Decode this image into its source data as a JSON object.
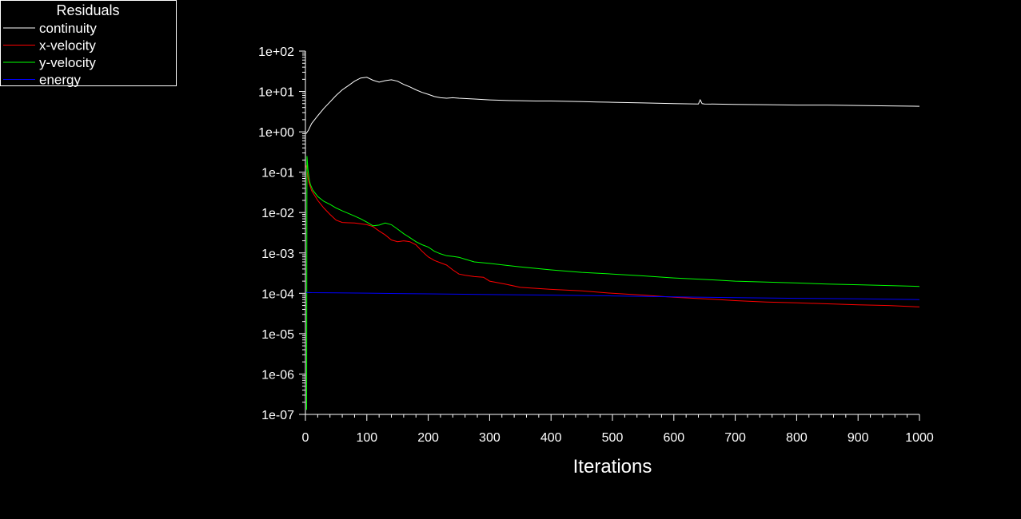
{
  "chart_data": {
    "type": "line",
    "title": "",
    "xlabel": "Iterations",
    "ylabel": "",
    "xlim": [
      0,
      1000
    ],
    "ylim": [
      1e-07,
      100
    ],
    "yscale": "log",
    "grid": false,
    "background": "#000000",
    "x_ticks": [
      0,
      100,
      200,
      300,
      400,
      500,
      600,
      700,
      800,
      900,
      1000
    ],
    "x_tick_labels": [
      "0",
      "100",
      "200",
      "300",
      "400",
      "500",
      "600",
      "700",
      "800",
      "900",
      "1000"
    ],
    "y_ticks": [
      1e-07,
      1e-06,
      1e-05,
      0.0001,
      0.001,
      0.01,
      0.1,
      1,
      10,
      100
    ],
    "y_tick_labels": [
      "1e-07",
      "1e-06",
      "1e-05",
      "1e-04",
      "1e-03",
      "1e-02",
      "1e-01",
      "1e+00",
      "1e+01",
      "1e+02"
    ],
    "legend": {
      "title": "Residuals",
      "placement": "top-left"
    },
    "series": [
      {
        "name": "continuity",
        "color": "#ffffff",
        "x": [
          1,
          5,
          10,
          20,
          30,
          40,
          50,
          60,
          70,
          80,
          90,
          100,
          110,
          120,
          130,
          140,
          150,
          160,
          170,
          180,
          190,
          200,
          210,
          220,
          230,
          240,
          250,
          275,
          300,
          325,
          350,
          375,
          400,
          425,
          450,
          475,
          500,
          550,
          600,
          640,
          643,
          646,
          650,
          700,
          750,
          800,
          850,
          900,
          950,
          1000
        ],
        "y": [
          0.9,
          1.1,
          1.6,
          2.5,
          3.8,
          5.5,
          8,
          11,
          14,
          18,
          21.5,
          22.5,
          19,
          17,
          18.5,
          19.5,
          18,
          15,
          13,
          11,
          9.5,
          8.5,
          7.5,
          7,
          6.8,
          7,
          6.8,
          6.5,
          6.2,
          6,
          5.9,
          5.8,
          5.8,
          5.7,
          5.6,
          5.5,
          5.4,
          5.2,
          5,
          4.9,
          6.2,
          5,
          4.9,
          4.8,
          4.7,
          4.6,
          4.6,
          4.5,
          4.4,
          4.3
        ]
      },
      {
        "name": "x-velocity",
        "color": "#ff0000",
        "x": [
          1,
          3,
          5,
          10,
          20,
          30,
          40,
          50,
          60,
          70,
          80,
          90,
          100,
          110,
          120,
          130,
          140,
          150,
          160,
          170,
          180,
          190,
          200,
          210,
          220,
          230,
          240,
          250,
          260,
          275,
          290,
          300,
          325,
          350,
          400,
          450,
          500,
          550,
          600,
          650,
          700,
          750,
          800,
          850,
          900,
          950,
          1000
        ],
        "y": [
          0.15,
          0.1,
          0.06,
          0.035,
          0.02,
          0.013,
          0.009,
          0.0065,
          0.0057,
          0.0056,
          0.0055,
          0.0053,
          0.005,
          0.0045,
          0.0035,
          0.0028,
          0.0021,
          0.0019,
          0.002,
          0.0019,
          0.0016,
          0.0011,
          0.0008,
          0.00065,
          0.00057,
          0.0005,
          0.00038,
          0.0003,
          0.00028,
          0.00026,
          0.00025,
          0.0002,
          0.00017,
          0.00014,
          0.000125,
          0.000115,
          0.0001,
          9e-05,
          8e-05,
          7.3e-05,
          6.6e-05,
          6.1e-05,
          5.8e-05,
          5.5e-05,
          5.2e-05,
          5e-05,
          4.6e-05
        ]
      },
      {
        "name": "y-velocity",
        "color": "#00ff00",
        "x": [
          2,
          2.5,
          3,
          4,
          6,
          8,
          12,
          20,
          30,
          40,
          50,
          60,
          70,
          80,
          90,
          100,
          110,
          120,
          130,
          140,
          150,
          160,
          170,
          180,
          190,
          200,
          210,
          220,
          230,
          240,
          250,
          260,
          275,
          300,
          350,
          400,
          450,
          500,
          550,
          600,
          650,
          700,
          750,
          800,
          850,
          900,
          950,
          1000
        ],
        "y": [
          1.3e-07,
          0.25,
          0.2,
          0.12,
          0.07,
          0.05,
          0.036,
          0.025,
          0.019,
          0.016,
          0.013,
          0.011,
          0.0095,
          0.0082,
          0.007,
          0.0058,
          0.0047,
          0.0049,
          0.0055,
          0.005,
          0.0039,
          0.003,
          0.0024,
          0.0019,
          0.0016,
          0.0014,
          0.0011,
          0.00095,
          0.00085,
          0.00082,
          0.00078,
          0.0007,
          0.0006,
          0.00055,
          0.00045,
          0.00038,
          0.00033,
          0.0003,
          0.00027,
          0.00024,
          0.00022,
          0.0002,
          0.00019,
          0.00018,
          0.00017,
          0.000163,
          0.000156,
          0.000148
        ]
      },
      {
        "name": "energy",
        "color": "#0000ff",
        "x": [
          1,
          10,
          50,
          100,
          150,
          200,
          300,
          400,
          500,
          600,
          700,
          800,
          900,
          1000
        ],
        "y": [
          0.000105,
          0.000104,
          0.000103,
          0.000101,
          9.9e-05,
          9.7e-05,
          9.3e-05,
          9e-05,
          8.6e-05,
          8.2e-05,
          7.8e-05,
          7.5e-05,
          7.3e-05,
          7e-05
        ]
      }
    ]
  }
}
